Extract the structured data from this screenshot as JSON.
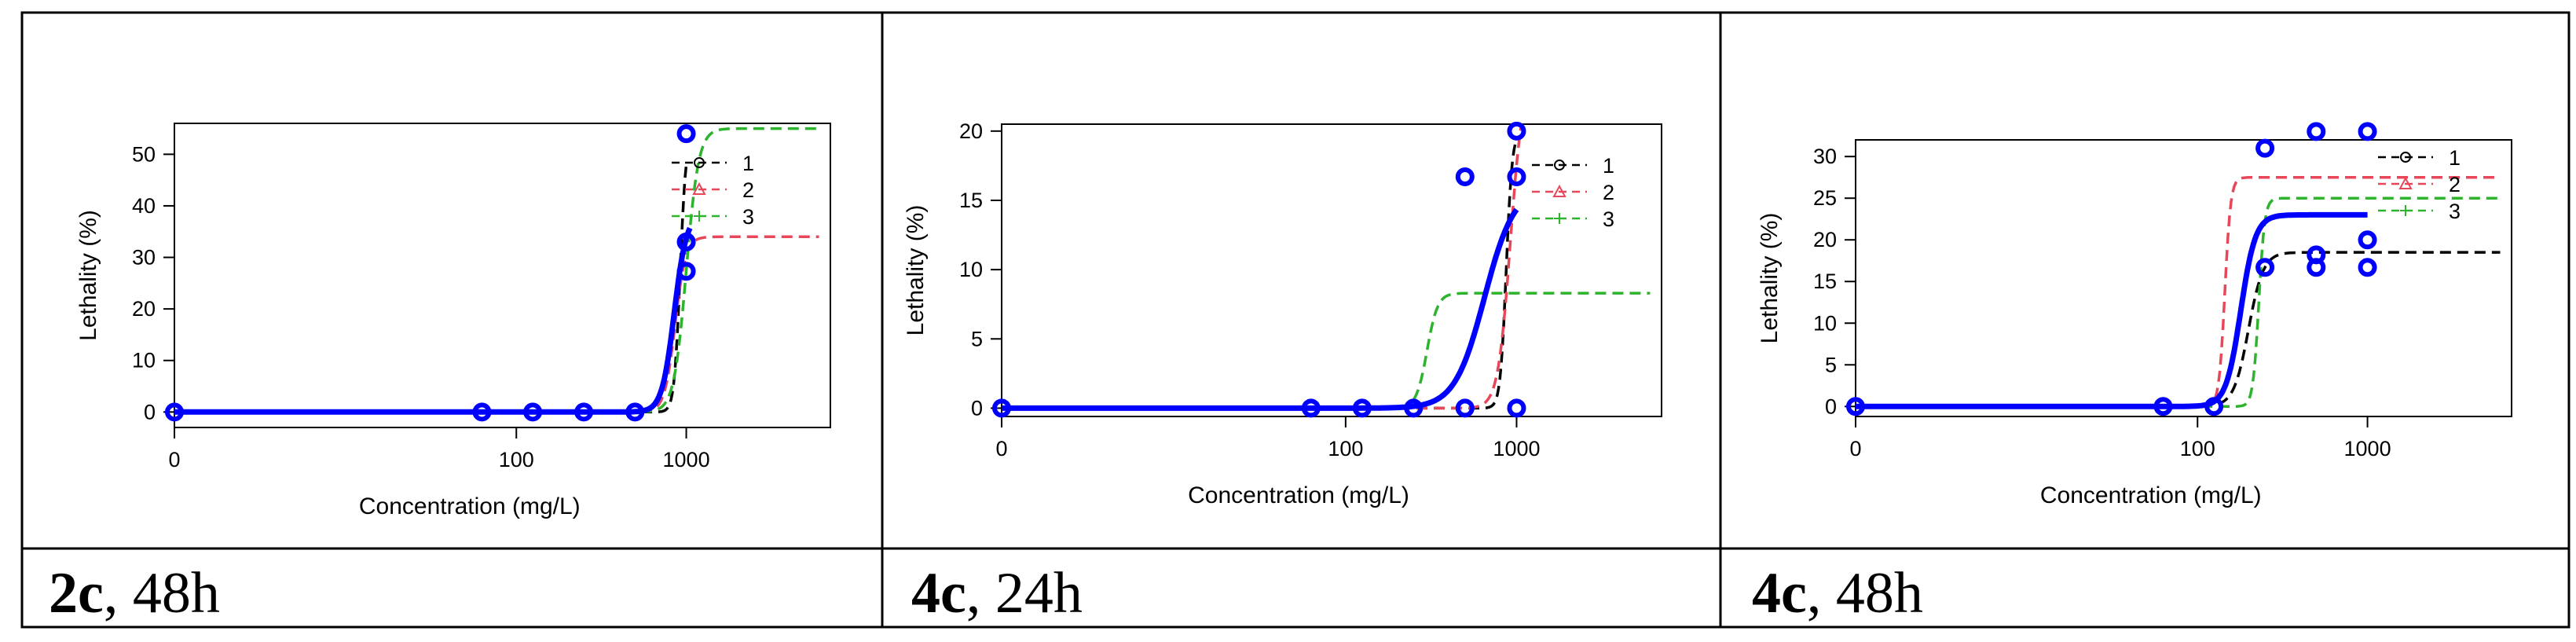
{
  "colors": {
    "fit": "#0000ff",
    "s1": "#000000",
    "s2": "#e8475a",
    "s3": "#2db42d",
    "frame": "#000000"
  },
  "chart_data": [
    {
      "type": "line",
      "caption_bold": "2c",
      "caption_rest": ", 48h",
      "xlabel": "Concentration (mg/L)",
      "ylabel": "Lethality (%)",
      "xscale": "log(x+1)",
      "xlim": [
        0,
        7000
      ],
      "ylim": [
        -3,
        56
      ],
      "xticks": [
        0,
        100,
        1000
      ],
      "xtick_labels": [
        "0",
        "100",
        "1000"
      ],
      "yticks": [
        0,
        10,
        20,
        30,
        40,
        50
      ],
      "ytick_labels": [
        "0",
        "10",
        "20",
        "30",
        "40",
        "50"
      ],
      "legend": [
        "1",
        "2",
        "3"
      ],
      "legend_position": "top-right",
      "points": [
        [
          0,
          0
        ],
        [
          62.5,
          0
        ],
        [
          125,
          0
        ],
        [
          250,
          0
        ],
        [
          500,
          0
        ],
        [
          1000,
          54
        ],
        [
          1000,
          33
        ],
        [
          1000,
          27.3
        ]
      ],
      "fit": {
        "max": 38.5,
        "ec50": 850,
        "slope": 12,
        "end_x": 1050
      },
      "series": [
        {
          "name": "1",
          "max": 54,
          "ec50": 920,
          "slope": 25,
          "end_x": 1000
        },
        {
          "name": "2",
          "max": 34,
          "ec50": 860,
          "slope": 14,
          "end_x": 6000
        },
        {
          "name": "3",
          "max": 55,
          "ec50": 1000,
          "slope": 12,
          "end_x": 6000
        }
      ]
    },
    {
      "type": "line",
      "caption_bold": "4c",
      "caption_rest": ", 24h",
      "xlabel": "Concentration (mg/L)",
      "ylabel": "Lethality (%)",
      "xscale": "log(x+1)",
      "xlim": [
        0,
        7000
      ],
      "ylim": [
        -0.6,
        20.5
      ],
      "xticks": [
        0,
        100,
        1000
      ],
      "xtick_labels": [
        "0",
        "100",
        "1000"
      ],
      "yticks": [
        0,
        5,
        10,
        15,
        20
      ],
      "ytick_labels": [
        "0",
        "5",
        "10",
        "15",
        "20"
      ],
      "legend": [
        "1",
        "2",
        "3"
      ],
      "legend_position": "top-right",
      "points": [
        [
          0,
          0
        ],
        [
          62.5,
          0
        ],
        [
          125,
          0
        ],
        [
          250,
          0
        ],
        [
          500,
          16.7
        ],
        [
          500,
          0
        ],
        [
          1000,
          20
        ],
        [
          1000,
          16.7
        ],
        [
          1000,
          0
        ]
      ],
      "fit": {
        "max": 16,
        "ec50": 650,
        "slope": 5,
        "end_x": 1000
      },
      "series": [
        {
          "name": "1",
          "max": 20,
          "ec50": 870,
          "slope": 25,
          "end_x": 1000
        },
        {
          "name": "2",
          "max": 24,
          "ec50": 920,
          "slope": 12,
          "end_x": 1200
        },
        {
          "name": "3",
          "max": 8.3,
          "ec50": 300,
          "slope": 14,
          "end_x": 6000
        }
      ]
    },
    {
      "type": "line",
      "caption_bold": "4c",
      "caption_rest": ", 48h",
      "xlabel": "Concentration (mg/L)",
      "ylabel": "Lethality (%)",
      "xscale": "log(x+1)",
      "xlim": [
        0,
        7000
      ],
      "ylim": [
        -1.2,
        32
      ],
      "xticks": [
        0,
        100,
        1000
      ],
      "xtick_labels": [
        "0",
        "100",
        "1000"
      ],
      "yticks": [
        0,
        5,
        10,
        15,
        20,
        25,
        30
      ],
      "ytick_labels": [
        "0",
        "5",
        "10",
        "15",
        "20",
        "25",
        "30"
      ],
      "legend": [
        "1",
        "2",
        "3"
      ],
      "legend_position": "top-right",
      "points": [
        [
          0,
          0
        ],
        [
          62.5,
          0
        ],
        [
          125,
          0
        ],
        [
          250,
          31
        ],
        [
          250,
          16.7
        ],
        [
          500,
          33
        ],
        [
          500,
          18.2
        ],
        [
          500,
          16.7
        ],
        [
          1000,
          33
        ],
        [
          1000,
          20
        ],
        [
          1000,
          16.7
        ]
      ],
      "fit": {
        "max": 23,
        "ec50": 180,
        "slope": 10,
        "end_x": 1000
      },
      "series": [
        {
          "name": "1",
          "max": 18.5,
          "ec50": 200,
          "slope": 10,
          "end_x": 6000
        },
        {
          "name": "2",
          "max": 27.5,
          "ec50": 145,
          "slope": 25,
          "end_x": 6000
        },
        {
          "name": "3",
          "max": 25,
          "ec50": 230,
          "slope": 25,
          "end_x": 6000
        }
      ]
    }
  ]
}
